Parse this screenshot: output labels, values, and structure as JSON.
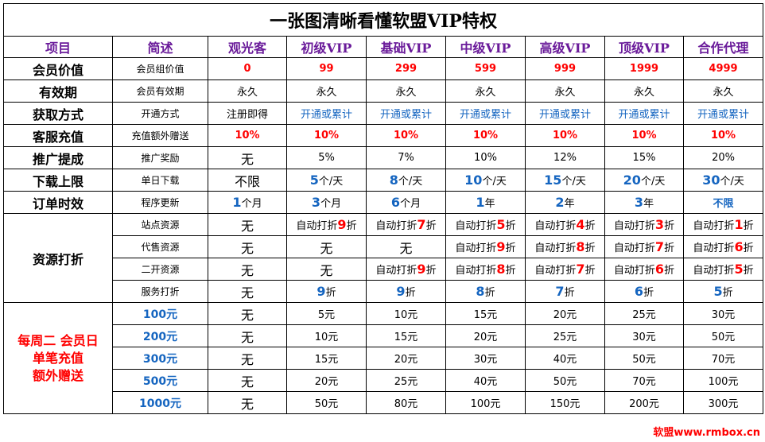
{
  "title": "一张图清晰看懂软盟VIP特权",
  "headers": [
    "项目",
    "简述",
    "观光客",
    "初级VIP",
    "基础VIP",
    "中级VIP",
    "高级VIP",
    "顶级VIP",
    "合作代理"
  ],
  "rows": [
    {
      "label": "会员价值",
      "desc": "会员组价值",
      "values": [
        "0",
        "99",
        "299",
        "599",
        "999",
        "1999",
        "4999"
      ]
    },
    {
      "label": "有效期",
      "desc": "会员有效期",
      "values": [
        "永久",
        "永久",
        "永久",
        "永久",
        "永久",
        "永久",
        "永久"
      ]
    },
    {
      "label": "获取方式",
      "desc": "开通方式",
      "values": [
        "注册即得",
        "开通或累计",
        "开通或累计",
        "开通或累计",
        "开通或累计",
        "开通或累计",
        "开通或累计"
      ]
    },
    {
      "label": "客服充值",
      "desc": "充值额外赠送",
      "values": [
        "10%",
        "10%",
        "10%",
        "10%",
        "10%",
        "10%",
        "10%"
      ]
    },
    {
      "label": "推广提成",
      "desc": "推广奖励",
      "values": [
        "无",
        "5%",
        "7%",
        "10%",
        "12%",
        "15%",
        "20%"
      ]
    },
    {
      "label": "下载上限",
      "desc": "单日下载",
      "first": "不限",
      "nums": [
        "5",
        "8",
        "10",
        "15",
        "20",
        "30"
      ],
      "unit": "个/天"
    },
    {
      "label": "订单时效",
      "desc": "程序更新",
      "nums": [
        "1",
        "3",
        "6",
        "1",
        "2",
        "3"
      ],
      "units": [
        "个月",
        "个月",
        "个月",
        "年",
        "年",
        "年"
      ],
      "last": "不限"
    }
  ],
  "discount": {
    "label": "资源打折",
    "prefix": "自动打折",
    "suffix": "折",
    "rows": [
      {
        "desc": "站点资源",
        "first": "无",
        "nums": [
          "9",
          "7",
          "5",
          "4",
          "3",
          "1"
        ]
      },
      {
        "desc": "代售资源",
        "first": "无",
        "second": "无",
        "third": "无",
        "nums": [
          "9",
          "8",
          "7",
          "6"
        ]
      },
      {
        "desc": "二开资源",
        "first": "无",
        "second": "无",
        "nums": [
          "9",
          "8",
          "7",
          "6",
          "5"
        ]
      },
      {
        "desc": "服务打折",
        "first": "无",
        "nums": [
          "9",
          "9",
          "8",
          "7",
          "6",
          "5"
        ]
      }
    ]
  },
  "promo": {
    "label_line1": "每周二 会员日",
    "label_line2": "单笔充值",
    "label_line3": "额外赠送",
    "rows": [
      {
        "amount": "100元",
        "values": [
          "无",
          "5元",
          "10元",
          "15元",
          "20元",
          "25元",
          "30元"
        ]
      },
      {
        "amount": "200元",
        "values": [
          "无",
          "10元",
          "15元",
          "20元",
          "25元",
          "30元",
          "50元"
        ]
      },
      {
        "amount": "300元",
        "values": [
          "无",
          "15元",
          "20元",
          "30元",
          "40元",
          "50元",
          "70元"
        ]
      },
      {
        "amount": "500元",
        "values": [
          "无",
          "20元",
          "25元",
          "40元",
          "50元",
          "70元",
          "100元"
        ]
      },
      {
        "amount": "1000元",
        "values": [
          "无",
          "50元",
          "80元",
          "100元",
          "150元",
          "200元",
          "300元"
        ]
      }
    ]
  },
  "watermark": "软盟www.rmbox.cn"
}
